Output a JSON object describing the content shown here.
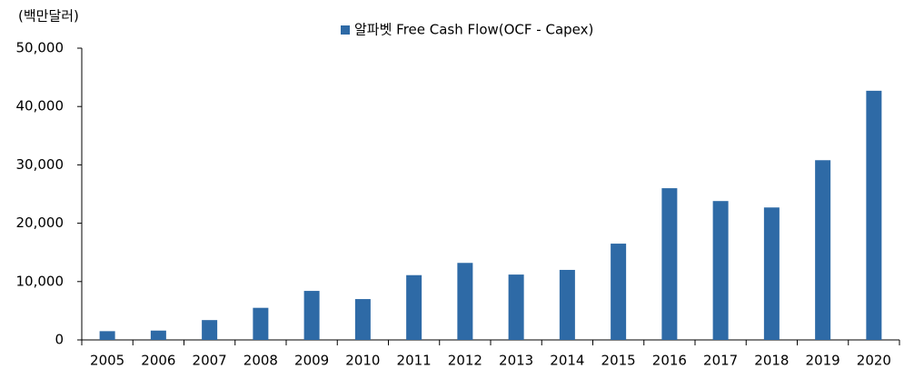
{
  "chart_data": {
    "type": "bar",
    "y_label": "(백만달러)",
    "categories": [
      "2005",
      "2006",
      "2007",
      "2008",
      "2009",
      "2010",
      "2011",
      "2012",
      "2013",
      "2014",
      "2015",
      "2016",
      "2017",
      "2018",
      "2019",
      "2020"
    ],
    "series": [
      {
        "name": "알파벳 Free Cash Flow(OCF - Capex)",
        "color": "#2e6aa6",
        "values": [
          1500,
          1600,
          3400,
          5500,
          8400,
          7000,
          11100,
          13200,
          11200,
          12000,
          16500,
          26000,
          23800,
          22700,
          30800,
          42700
        ]
      }
    ],
    "ylim": [
      0,
      50000
    ],
    "yticks": [
      0,
      {
        "value": 10000,
        "label": "10,000"
      },
      {
        "value": 20000,
        "label": "20,000"
      },
      {
        "value": 30000,
        "label": "30,000"
      },
      {
        "value": 40000,
        "label": "40,000"
      },
      {
        "value": 50000,
        "label": "50,000"
      }
    ],
    "legend": "top"
  }
}
